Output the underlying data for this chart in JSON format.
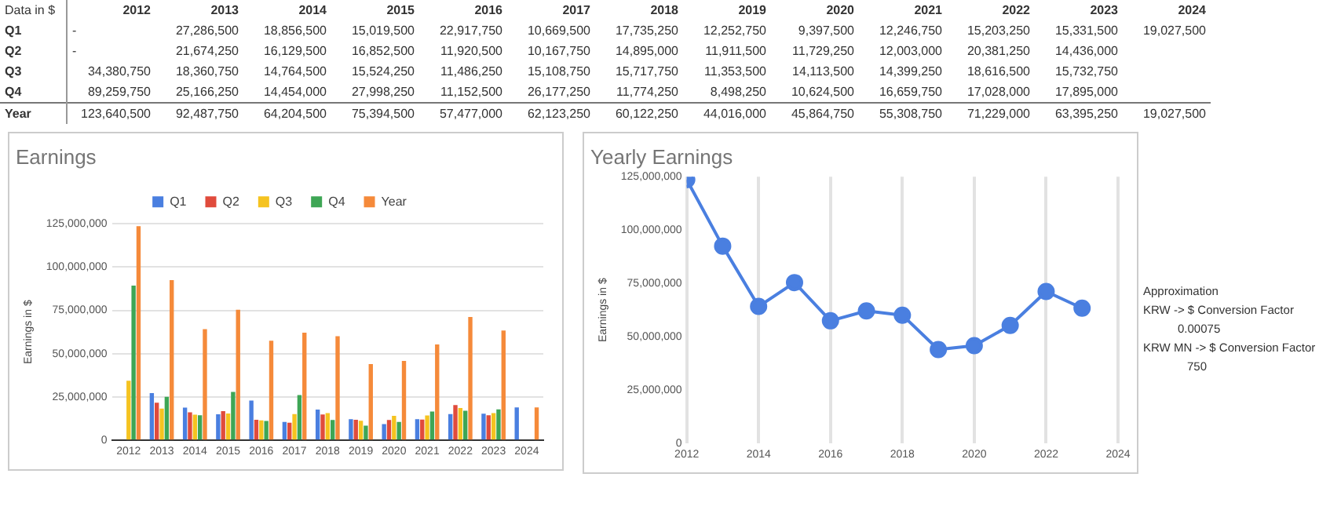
{
  "chart_data": [
    {
      "type": "heatmap",
      "annotations": [
        "Data in $"
      ],
      "categories": [
        "2012",
        "2013",
        "2014",
        "2015",
        "2016",
        "2017",
        "2018",
        "2019",
        "2020",
        "2021",
        "2022",
        "2023",
        "2024"
      ],
      "y_categories": [
        "Q1",
        "Q2",
        "Q3",
        "Q4",
        "Year"
      ],
      "cells": [
        [
          null,
          27286500,
          18856500,
          15019500,
          22917750,
          10669500,
          17735250,
          12252750,
          9397500,
          12246750,
          15203250,
          15331500,
          19027500
        ],
        [
          null,
          21674250,
          16129500,
          16852500,
          11920500,
          10167750,
          14895000,
          11911500,
          11729250,
          12003000,
          20381250,
          14436000,
          null
        ],
        [
          34380750,
          18360750,
          14764500,
          15524250,
          11486250,
          15108750,
          15717750,
          11353500,
          14113500,
          14399250,
          18616500,
          15732750,
          null
        ],
        [
          89259750,
          25166250,
          14454000,
          27998250,
          11152500,
          26177250,
          11774250,
          8498250,
          10624500,
          16659750,
          17028000,
          17895000,
          null
        ],
        [
          123640500,
          92487750,
          64204500,
          75394500,
          57477000,
          62123250,
          60122250,
          44016000,
          45864750,
          55308750,
          71229000,
          63395250,
          19027500
        ]
      ],
      "cell_labels": [
        [
          "-",
          "27,286,500",
          "18,856,500",
          "15,019,500",
          "22,917,750",
          "10,669,500",
          "17,735,250",
          "12,252,750",
          "9,397,500",
          "12,246,750",
          "15,203,250",
          "15,331,500",
          "19,027,500"
        ],
        [
          "-",
          "21,674,250",
          "16,129,500",
          "16,852,500",
          "11,920,500",
          "10,167,750",
          "14,895,000",
          "11,911,500",
          "11,729,250",
          "12,003,000",
          "20,381,250",
          "14,436,000",
          null
        ],
        [
          "34,380,750",
          "18,360,750",
          "14,764,500",
          "15,524,250",
          "11,486,250",
          "15,108,750",
          "15,717,750",
          "11,353,500",
          "14,113,500",
          "14,399,250",
          "18,616,500",
          "15,732,750",
          null
        ],
        [
          "89,259,750",
          "25,166,250",
          "14,454,000",
          "27,998,250",
          "11,152,500",
          "26,177,250",
          "11,774,250",
          "8,498,250",
          "10,624,500",
          "16,659,750",
          "17,028,000",
          "17,895,000",
          null
        ],
        [
          "123,640,500",
          "92,487,750",
          "64,204,500",
          "75,394,500",
          "57,477,000",
          "62,123,250",
          "60,122,250",
          "44,016,000",
          "45,864,750",
          "55,308,750",
          "71,229,000",
          "63,395,250",
          "19,027,500"
        ]
      ]
    },
    {
      "type": "bar",
      "title": "Earnings",
      "ylabel": "Earnings in $",
      "categories": [
        "2012",
        "2013",
        "2014",
        "2015",
        "2016",
        "2017",
        "2018",
        "2019",
        "2020",
        "2021",
        "2022",
        "2023",
        "2024"
      ],
      "series": [
        {
          "name": "Q1",
          "color": "#4a7fe0",
          "values": [
            null,
            27286500,
            18856500,
            15019500,
            22917750,
            10669500,
            17735250,
            12252750,
            9397500,
            12246750,
            15203250,
            15331500,
            19027500
          ]
        },
        {
          "name": "Q2",
          "color": "#e04b3c",
          "values": [
            null,
            21674250,
            16129500,
            16852500,
            11920500,
            10167750,
            14895000,
            11911500,
            11729250,
            12003000,
            20381250,
            14436000,
            null
          ]
        },
        {
          "name": "Q3",
          "color": "#f5c320",
          "values": [
            34380750,
            18360750,
            14764500,
            15524250,
            11486250,
            15108750,
            15717750,
            11353500,
            14113500,
            14399250,
            18616500,
            15732750,
            null
          ]
        },
        {
          "name": "Q4",
          "color": "#3ea655",
          "values": [
            89259750,
            25166250,
            14454000,
            27998250,
            11152500,
            26177250,
            11774250,
            8498250,
            10624500,
            16659750,
            17028000,
            17895000,
            null
          ]
        },
        {
          "name": "Year",
          "color": "#f58a3a",
          "values": [
            123640500,
            92487750,
            64204500,
            75394500,
            57477000,
            62123250,
            60122250,
            44016000,
            45864750,
            55308750,
            71229000,
            63395250,
            19027500
          ]
        }
      ],
      "ylim": [
        0,
        125000000
      ],
      "yticks": [
        {
          "value": 0,
          "label": "0"
        },
        {
          "value": 25000000,
          "label": "25,000,000"
        },
        {
          "value": 50000000,
          "label": "50,000,000"
        },
        {
          "value": 75000000,
          "label": "75,000,000"
        },
        {
          "value": 100000000,
          "label": "100,000,000"
        },
        {
          "value": 125000000,
          "label": "125,000,000"
        }
      ],
      "grid": "y",
      "legend": "top"
    },
    {
      "type": "line",
      "title": "Yearly Earnings",
      "ylabel": "Earnings in $",
      "annotations": [
        "Approximation",
        "KRW -> $ Conversion Factor",
        "0.00075",
        "KRW MN -> $ Conversion Factor",
        "750"
      ],
      "x": [
        2012,
        2013,
        2014,
        2015,
        2016,
        2017,
        2018,
        2019,
        2020,
        2021,
        2022,
        2023
      ],
      "series": [
        {
          "color": "#4a7fe0",
          "values": [
            123640500,
            92487750,
            64204500,
            75394500,
            57477000,
            62123250,
            60122250,
            44016000,
            45864750,
            55308750,
            71229000,
            63395250
          ]
        }
      ],
      "xlim": [
        2012,
        2024
      ],
      "xticks": [
        2012,
        2014,
        2016,
        2018,
        2020,
        2022,
        2024
      ],
      "ylim": [
        0,
        125000000
      ],
      "yticks": [
        {
          "value": 0,
          "label": "0"
        },
        {
          "value": 25000000,
          "label": "25,000,000"
        },
        {
          "value": 50000000,
          "label": "50,000,000"
        },
        {
          "value": 75000000,
          "label": "75,000,000"
        },
        {
          "value": 100000000,
          "label": "100,000,000"
        },
        {
          "value": 125000000,
          "label": "125,000,000"
        }
      ],
      "grid": "x",
      "marker": "circle",
      "line_style": "solid"
    }
  ]
}
